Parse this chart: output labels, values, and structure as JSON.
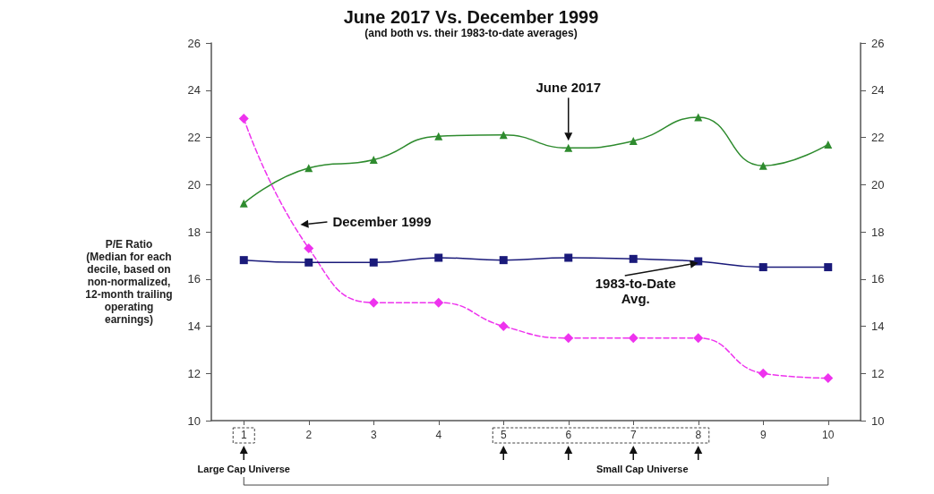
{
  "chart_data": {
    "type": "line",
    "title": "June 2017 Vs. December 1999",
    "subtitle": "(and both vs. their 1983-to-date averages)",
    "ylabel": "P/E Ratio (Median for each decile, based on non-normalized, 12-month trailing operating earnings)",
    "categories": [
      "1",
      "2",
      "3",
      "4",
      "5",
      "6",
      "7",
      "8",
      "9",
      "10"
    ],
    "series": [
      {
        "name": "June 2017",
        "color": "#2e8b2e",
        "marker": "triangle",
        "line_style": "solid",
        "values": [
          19.2,
          20.7,
          21.05,
          22.05,
          22.1,
          21.55,
          21.85,
          22.85,
          20.8,
          21.7
        ]
      },
      {
        "name": "December 1999",
        "color": "#ee33ee",
        "marker": "diamond",
        "line_style": "dashed",
        "values": [
          22.8,
          17.3,
          15.0,
          15.0,
          14.0,
          13.5,
          13.5,
          13.5,
          12.0,
          11.8
        ]
      },
      {
        "name": "1983-to-Date Avg.",
        "color": "#1a1a7a",
        "marker": "square",
        "line_style": "solid",
        "values": [
          16.8,
          16.7,
          16.7,
          16.9,
          16.8,
          16.9,
          16.85,
          16.75,
          16.5,
          16.5
        ]
      }
    ],
    "ylim": [
      10,
      26
    ],
    "yticks": [
      10,
      12,
      14,
      16,
      18,
      20,
      22,
      24,
      26
    ],
    "y2lim": [
      10,
      26
    ],
    "y2ticks": [
      10,
      12,
      14,
      16,
      18,
      20,
      22,
      24,
      26
    ],
    "annotations": [
      "Large Cap Universe",
      "Small Cap Universe"
    ]
  }
}
